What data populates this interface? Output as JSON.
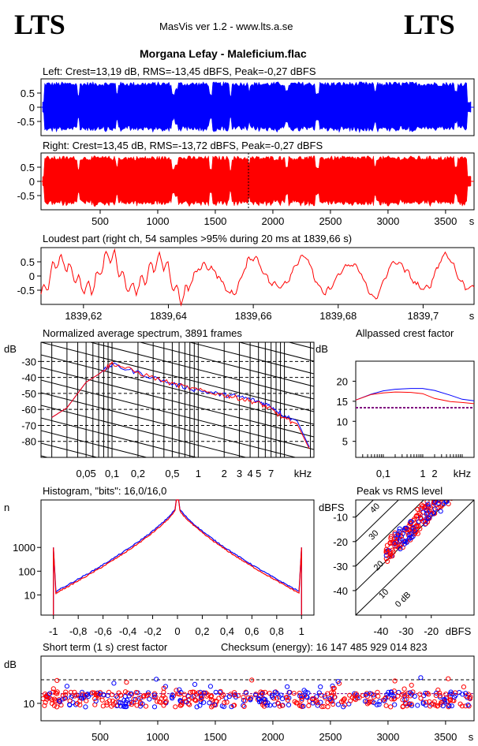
{
  "header": {
    "logo_left": "LTS",
    "logo_right": "LTS",
    "app_title": "MasVis ver 1.2 - www.lts.a.se",
    "track_title": "Morgana Lefay - Maleficium.flac"
  },
  "colors": {
    "left": "#0000ff",
    "right": "#ff0000",
    "purple": "#800080",
    "grid": "#000000"
  },
  "chart_data": [
    {
      "id": "left-waveform",
      "type": "area",
      "title": "Left: Crest=13,19 dB, RMS=-13,45 dBFS, Peak=-0,27 dBFS",
      "ylim": [
        -1,
        1
      ],
      "y_ticks": [
        "0.5",
        "0",
        "-0.5"
      ],
      "series": [
        {
          "name": "",
          "color": "#0000ff"
        }
      ]
    },
    {
      "id": "right-waveform",
      "type": "area",
      "title": "Right: Crest=13,45 dB, RMS=-13,72 dBFS, Peak=-0,27 dBFS",
      "xlim": [
        0,
        3720
      ],
      "ylim": [
        -1,
        1
      ],
      "x_ticks": [
        "500",
        "1000",
        "1500",
        "2000",
        "2500",
        "3000",
        "3500"
      ],
      "x_unit": "s",
      "y_ticks": [
        "0.5",
        "0",
        "-0.5"
      ],
      "series": [
        {
          "name": "",
          "color": "#ff0000"
        }
      ]
    },
    {
      "id": "loudest-part",
      "type": "line",
      "title": "Loudest part (right ch, 54 samples >95% during 20 ms at 1839,66 s)",
      "xlim": [
        1839.61,
        1839.712
      ],
      "ylim": [
        -1,
        1
      ],
      "x_ticks": [
        "1839,62",
        "1839,64",
        "1839,66",
        "1839,68",
        "1839,7"
      ],
      "x_unit": "s",
      "y_ticks": [
        "0.5",
        "0",
        "-0.5"
      ],
      "wave_period_s": 0.0113
    },
    {
      "id": "spectrum",
      "type": "line",
      "title": "Normalized average spectrum, 3891 frames",
      "ylabel": "dB",
      "xlabel": "kHz",
      "ylim": [
        -90,
        -18
      ],
      "y_ticks": [
        "-30",
        "-40",
        "-50",
        "-60",
        "-70",
        "-80"
      ],
      "x_ticks": [
        "0,05",
        "0,1",
        "0,2",
        "0,5",
        "1",
        "2",
        "3",
        "4",
        "5",
        "7"
      ],
      "x": [
        0.02,
        0.03,
        0.05,
        0.07,
        0.1,
        0.2,
        0.5,
        1,
        2,
        3,
        5,
        7,
        10,
        14,
        20
      ],
      "series": [
        {
          "name": "",
          "color": "#0000ff",
          "values": [
            -65,
            -59,
            -43,
            -38,
            -32,
            -37,
            -44,
            -48,
            -51,
            -52,
            -55,
            -58,
            -64,
            -67,
            -85
          ]
        },
        {
          "name": "",
          "color": "#ff0000",
          "values": [
            -65,
            -59,
            -43,
            -38,
            -31,
            -37,
            -44,
            -48,
            -51,
            -53,
            -56,
            -60,
            -66,
            -69,
            -86
          ]
        }
      ]
    },
    {
      "id": "allpassed-crest",
      "type": "line",
      "title": "Allpassed crest factor",
      "ylabel": "dB",
      "xlabel": "kHz",
      "ylim": [
        1,
        25
      ],
      "y_ticks": [
        "20",
        "15",
        "10",
        "5"
      ],
      "x_ticks": [
        "0,1",
        "1",
        "2"
      ],
      "x": [
        0.02,
        0.05,
        0.1,
        0.2,
        0.5,
        1,
        2,
        5,
        10,
        20
      ],
      "reference_db": 13.4,
      "series": [
        {
          "name": "",
          "color": "#0000ff",
          "values": [
            15.3,
            16.8,
            17.6,
            18,
            18.2,
            18.2,
            17.7,
            16.5,
            15.5,
            15.1
          ]
        },
        {
          "name": "",
          "color": "#ff0000",
          "values": [
            15.3,
            16.7,
            17.1,
            17.3,
            17.2,
            16.9,
            15.7,
            14.9,
            14.7,
            14.4
          ]
        }
      ]
    },
    {
      "id": "histogram",
      "type": "line",
      "title": "Histogram, \"bits\": 16,0/16,0",
      "ylabel": "n",
      "xlim": [
        -1.1,
        1.1
      ],
      "y_ticks": [
        "1000",
        "100",
        "10"
      ],
      "x_ticks": [
        "-1",
        "-0,8",
        "-0,6",
        "-0,4",
        "-0,2",
        "0",
        "0,2",
        "0,4",
        "0,6",
        "0,8",
        "1"
      ],
      "center_log_n": 4.8,
      "edge_log_n": 1.15,
      "peak_log_n": 3.0
    },
    {
      "id": "peak-vs-rms",
      "type": "scatter",
      "title": "Peak vs RMS level",
      "xlabel": "dBFS",
      "ylabel": "dBFS",
      "xlim": [
        -50,
        -3
      ],
      "ylim": [
        -50,
        -3
      ],
      "x_ticks": [
        "-40",
        "-30",
        "-20"
      ],
      "y_ticks": [
        "-10",
        "-20",
        "-30",
        "-40"
      ],
      "diagonal_labels": [
        "40",
        "30",
        "20",
        "10",
        "0 dB"
      ]
    },
    {
      "id": "short-term-crest",
      "type": "scatter",
      "title": "Short term (1 s) crest factor",
      "ylabel": "dB",
      "checksum": "Checksum (energy):  16 147 485 929 014 823",
      "xlim": [
        0,
        3720
      ],
      "y_ticks": [
        "10"
      ],
      "x_ticks": [
        "500",
        "1000",
        "1500",
        "2000",
        "2500",
        "3000",
        "3500"
      ],
      "x_unit": "s",
      "crest_mean_db": 13.3,
      "reference_db": 20
    }
  ]
}
